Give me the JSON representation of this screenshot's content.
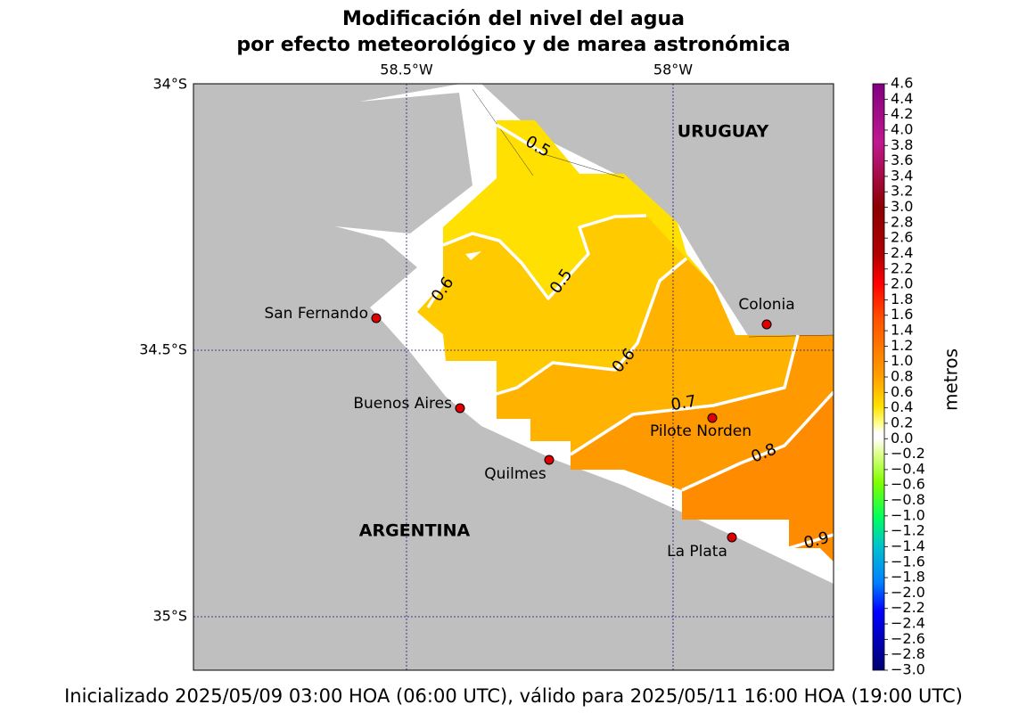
{
  "title": [
    "Modificación del nivel del agua",
    "por efecto meteorológico y de marea astronómica"
  ],
  "lon_ticks": [
    "58.5°W",
    "58°W"
  ],
  "lat_ticks": [
    "34°S",
    "34.5°S",
    "35°S"
  ],
  "countries": [
    "URUGUAY",
    "ARGENTINA"
  ],
  "cities": [
    "San Fernando",
    "Buenos Aires",
    "Quilmes",
    "Colonia",
    "Pilote Norden",
    "La Plata"
  ],
  "contour_labels": [
    "0.5",
    "0.5",
    "0.6",
    "0.6",
    "0.7",
    "0.8",
    "0.9"
  ],
  "colorbar": {
    "label": "metros",
    "lim": [
      -3.0,
      4.6
    ],
    "ticks": [
      {
        "value": -3.0,
        "label": "−3.0"
      },
      {
        "value": -2.8,
        "label": "−2.8"
      },
      {
        "value": -2.6,
        "label": "−2.6"
      },
      {
        "value": -2.4,
        "label": "−2.4"
      },
      {
        "value": -2.2,
        "label": "−2.2"
      },
      {
        "value": -2.0,
        "label": "−2.0"
      },
      {
        "value": -1.8,
        "label": "−1.8"
      },
      {
        "value": -1.6,
        "label": "−1.6"
      },
      {
        "value": -1.4,
        "label": "−1.4"
      },
      {
        "value": -1.2,
        "label": "−1.2"
      },
      {
        "value": -1.0,
        "label": "−1.0"
      },
      {
        "value": -0.8,
        "label": "−0.8"
      },
      {
        "value": -0.6,
        "label": "−0.6"
      },
      {
        "value": -0.4,
        "label": "−0.4"
      },
      {
        "value": -0.2,
        "label": "−0.2"
      },
      {
        "value": 0,
        "label": "0.0"
      },
      0.2,
      0.4,
      0.6,
      0.8,
      {
        "value": 1,
        "label": "1.0"
      },
      1.2,
      1.4,
      1.6,
      1.8,
      {
        "value": 2,
        "label": "2.0"
      },
      2.2,
      2.4,
      2.6,
      2.8,
      {
        "value": 3,
        "label": "3.0"
      },
      3.2,
      3.4,
      3.6,
      3.8,
      {
        "value": 4,
        "label": "4.0"
      },
      4.2,
      4.4,
      4.6
    ]
  },
  "footer": "Inicializado 2025/05/09 03:00 HOA (06:00 UTC), válido para 2025/05/11 16:00 HOA (19:00 UTC)"
}
